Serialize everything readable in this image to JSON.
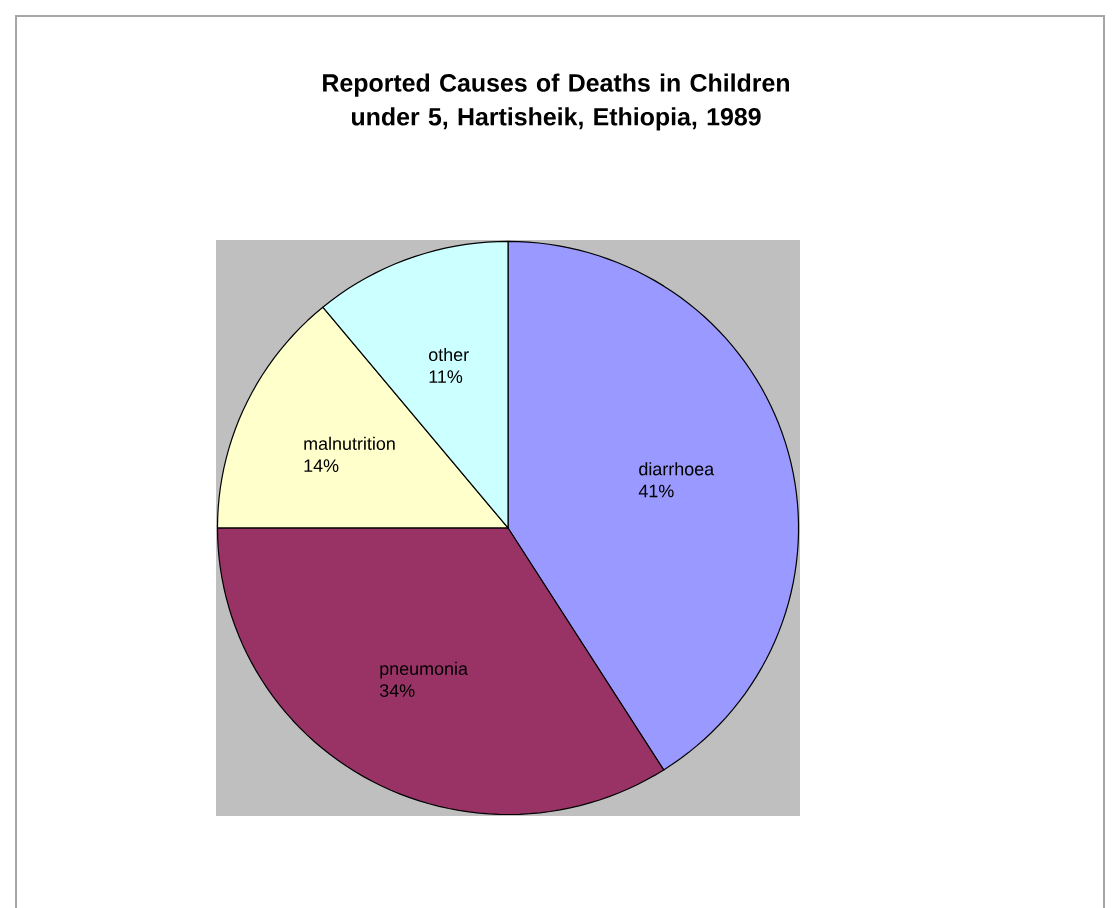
{
  "chart_data": {
    "type": "pie",
    "title": "Reported Causes of Deaths in  Children under 5, Hartisheik, Ethiopia, 1989",
    "categories": [
      "diarrhoea",
      "pneumonia",
      "malnutrition",
      "other"
    ],
    "values": [
      41,
      34,
      14,
      11
    ],
    "colors": [
      "#9999ff",
      "#993366",
      "#ffffcc",
      "#ccffff"
    ],
    "value_labels": [
      "41%",
      "34%",
      "14%",
      "11%"
    ]
  }
}
